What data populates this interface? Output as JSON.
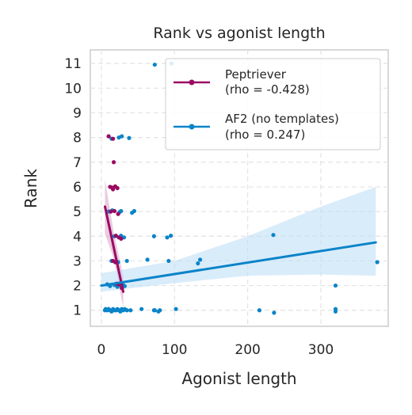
{
  "chart_data": {
    "type": "scatter",
    "title": "Rank vs agonist length",
    "xlabel": "Agonist length",
    "ylabel": "Rank",
    "xlim": [
      -15,
      392
    ],
    "ylim": [
      0.35,
      11.55
    ],
    "xticks": [
      0,
      100,
      200,
      300
    ],
    "yticks": [
      1,
      2,
      3,
      4,
      5,
      6,
      7,
      8,
      9,
      10,
      11
    ],
    "grid": true,
    "legend_position": "top-right",
    "series": [
      {
        "name": "Peptriever",
        "legend_line1": "Peptriever",
        "legend_line2": "(rho = -0.428)",
        "color": "#9b0a62",
        "points": [
          [
            10,
            8.05
          ],
          [
            16,
            7.95
          ],
          [
            17,
            7.0
          ],
          [
            12,
            6.0
          ],
          [
            14,
            5.98
          ],
          [
            16,
            5.9
          ],
          [
            19,
            6.02
          ],
          [
            22,
            5.95
          ],
          [
            13,
            5.0
          ],
          [
            18,
            5.02
          ],
          [
            23,
            4.9
          ],
          [
            20,
            4.02
          ],
          [
            24,
            3.95
          ],
          [
            27,
            3.9
          ],
          [
            16,
            3.0
          ],
          [
            19,
            2.95
          ],
          [
            21,
            2.08
          ],
          [
            24,
            2.05
          ],
          [
            28,
            1.9
          ]
        ],
        "regression": {
          "x": [
            5,
            30
          ],
          "y": [
            5.2,
            1.75
          ]
        },
        "ci": {
          "x": [
            5,
            17,
            30
          ],
          "upper": [
            6.3,
            4.15,
            2.4
          ],
          "lower": [
            4.1,
            3.1,
            1.1
          ]
        }
      },
      {
        "name": "AF2 (no templates)",
        "legend_line1": "AF2 (no templates)",
        "legend_line2": "(rho = 0.247)",
        "color": "#0a84c8",
        "points": [
          [
            73,
            10.95
          ],
          [
            96,
            11.0
          ],
          [
            10,
            8.05
          ],
          [
            14,
            7.95
          ],
          [
            24,
            8.0
          ],
          [
            28,
            8.05
          ],
          [
            38,
            7.98
          ],
          [
            10,
            5.0
          ],
          [
            15,
            5.05
          ],
          [
            25,
            4.98
          ],
          [
            27,
            5.02
          ],
          [
            42,
            4.95
          ],
          [
            45,
            5.02
          ],
          [
            18,
            4.0
          ],
          [
            27,
            4.02
          ],
          [
            31,
            3.95
          ],
          [
            72,
            4.0
          ],
          [
            90,
            3.95
          ],
          [
            95,
            4.02
          ],
          [
            235,
            4.05
          ],
          [
            14,
            3.0
          ],
          [
            23,
            2.95
          ],
          [
            35,
            3.0
          ],
          [
            63,
            3.05
          ],
          [
            92,
            3.0
          ],
          [
            132,
            2.9
          ],
          [
            135,
            3.05
          ],
          [
            377,
            2.95
          ],
          [
            8,
            2.05
          ],
          [
            12,
            1.98
          ],
          [
            18,
            2.02
          ],
          [
            22,
            1.95
          ],
          [
            27,
            2.0
          ],
          [
            29,
            2.05
          ],
          [
            32,
            1.98
          ],
          [
            320,
            2.0
          ],
          [
            5,
            1.0
          ],
          [
            6,
            1.05
          ],
          [
            8,
            1.0
          ],
          [
            10,
            1.05
          ],
          [
            12,
            1.0
          ],
          [
            14,
            0.95
          ],
          [
            16,
            1.05
          ],
          [
            18,
            1.0
          ],
          [
            20,
            1.0
          ],
          [
            22,
            1.05
          ],
          [
            24,
            1.0
          ],
          [
            26,
            0.95
          ],
          [
            28,
            1.05
          ],
          [
            30,
            1.0
          ],
          [
            32,
            1.05
          ],
          [
            35,
            1.0
          ],
          [
            40,
            1.0
          ],
          [
            55,
            1.05
          ],
          [
            72,
            1.0
          ],
          [
            73,
            1.0
          ],
          [
            78,
            0.95
          ],
          [
            80,
            1.0
          ],
          [
            102,
            1.05
          ],
          [
            216,
            1.0
          ],
          [
            236,
            0.9
          ],
          [
            320,
            1.05
          ],
          [
            320,
            0.95
          ]
        ],
        "regression": {
          "x": [
            0,
            375
          ],
          "y": [
            2.0,
            3.75
          ]
        },
        "ci": {
          "x": [
            0,
            100,
            200,
            300,
            375
          ],
          "upper": [
            2.5,
            3.0,
            4.0,
            5.2,
            6.0
          ],
          "lower": [
            1.75,
            2.1,
            2.4,
            2.45,
            2.4
          ]
        }
      }
    ]
  }
}
